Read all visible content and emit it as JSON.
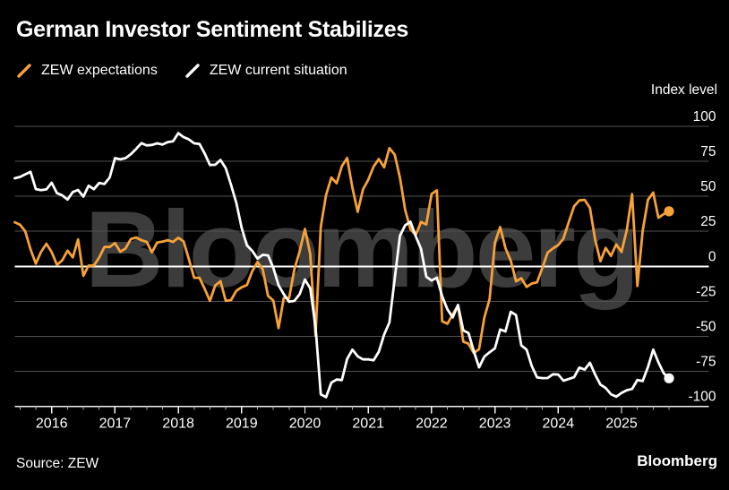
{
  "title": "German Investor Sentiment Stabilizes",
  "watermark": "Bloomberg",
  "footer": {
    "source": "Source: ZEW",
    "brand": "Bloomberg"
  },
  "colors": {
    "background": "#000000",
    "title_text": "#FFFFFF",
    "grid_line": "#4F4F4F",
    "zero_line": "#FFFFFF",
    "axis_line": "#F2F2F2",
    "tick_mark": "#AAAAAA",
    "axis_label": "#FFFFFF",
    "watermark_text": "#3C3C3C",
    "expectations_orange": "#F7A139",
    "current_situation_white": "#FFFFFF"
  },
  "chart_data": {
    "type": "line",
    "title": "German Investor Sentiment Stabilizes",
    "unit_label": "Index level",
    "frequency": "monthly",
    "x_start": "2015-06",
    "x_end": "2025-10",
    "x_tick_years": [
      2016,
      2017,
      2018,
      2019,
      2020,
      2021,
      2022,
      2023,
      2024,
      2025
    ],
    "x_minor_tick_interval_months": 3,
    "ylim": [
      -100,
      100
    ],
    "y_ticks": [
      100,
      75,
      50,
      25,
      0,
      -25,
      -50,
      -75,
      -100
    ],
    "grid": true,
    "legend_position": "top-left",
    "end_point_markers": true,
    "series": [
      {
        "name": "ZEW expectations",
        "color": "#F7A139",
        "values": [
          31.5,
          29.7,
          25.0,
          12.1,
          1.9,
          10.4,
          16.1,
          10.2,
          1.0,
          4.3,
          11.2,
          6.4,
          19.2,
          -6.8,
          0.5,
          0.5,
          6.2,
          13.8,
          13.8,
          16.6,
          10.4,
          12.8,
          19.5,
          20.6,
          18.6,
          17.5,
          10.0,
          17.0,
          17.6,
          18.7,
          17.4,
          20.4,
          17.8,
          5.1,
          -8.2,
          -8.2,
          -16.1,
          -24.7,
          -13.7,
          -10.6,
          -24.7,
          -24.1,
          -17.5,
          -15.0,
          -13.4,
          -3.6,
          3.1,
          -2.1,
          -21.1,
          -24.5,
          -44.1,
          -22.5,
          -22.8,
          -2.1,
          10.7,
          26.7,
          8.7,
          -49.5,
          28.2,
          51.0,
          63.4,
          59.3,
          71.5,
          77.4,
          56.1,
          39.0,
          55.0,
          61.8,
          71.2,
          76.6,
          70.7,
          84.4,
          79.8,
          63.3,
          40.4,
          26.5,
          22.3,
          31.7,
          29.9,
          51.7,
          54.3,
          -39.3,
          -41.0,
          -34.3,
          -28.0,
          -53.8,
          -55.3,
          -61.9,
          -59.2,
          -36.7,
          -23.3,
          16.9,
          28.1,
          13.0,
          4.1,
          -10.7,
          -8.5,
          -14.7,
          -12.3,
          -11.4,
          -1.1,
          9.8,
          12.8,
          15.2,
          19.9,
          31.7,
          42.9,
          47.1,
          47.5,
          41.8,
          19.2,
          3.6,
          13.1,
          7.4,
          15.7,
          10.3,
          26.0,
          51.6,
          -14.0,
          25.2,
          47.5,
          52.7,
          34.7,
          37.3,
          39.3
        ]
      },
      {
        "name": "ZEW current situation",
        "color": "#FFFFFF",
        "values": [
          62.9,
          63.9,
          65.7,
          67.5,
          55.2,
          54.4,
          55.0,
          59.7,
          52.3,
          50.7,
          47.7,
          53.1,
          54.5,
          49.8,
          57.6,
          55.1,
          59.5,
          58.8,
          63.5,
          77.3,
          76.4,
          77.3,
          80.1,
          83.9,
          88.0,
          86.4,
          86.7,
          87.9,
          87.0,
          88.8,
          89.3,
          95.2,
          92.3,
          90.7,
          87.9,
          87.4,
          80.6,
          72.4,
          72.6,
          76.0,
          70.1,
          58.2,
          45.3,
          27.6,
          15.0,
          11.1,
          5.5,
          8.2,
          7.8,
          -1.1,
          -13.5,
          -19.9,
          -25.3,
          -24.7,
          -19.9,
          -9.5,
          -15.7,
          -43.1,
          -91.5,
          -93.5,
          -83.1,
          -80.9,
          -81.3,
          -66.2,
          -59.5,
          -64.3,
          -66.5,
          -66.4,
          -67.2,
          -61.0,
          -48.8,
          -40.1,
          -9.1,
          21.9,
          29.3,
          31.9,
          21.6,
          12.5,
          -7.4,
          -10.2,
          -8.1,
          -21.4,
          -30.8,
          -36.5,
          -27.6,
          -45.8,
          -47.6,
          -60.5,
          -72.2,
          -64.5,
          -61.4,
          -58.6,
          -45.1,
          -46.5,
          -32.5,
          -34.8,
          -56.5,
          -59.5,
          -71.3,
          -79.4,
          -79.9,
          -79.8,
          -77.1,
          -77.3,
          -81.7,
          -80.5,
          -79.2,
          -72.3,
          -73.8,
          -68.9,
          -77.3,
          -84.5,
          -86.9,
          -91.4,
          -93.1,
          -90.4,
          -88.5,
          -87.6,
          -81.2,
          -82.0,
          -72.0,
          -59.5,
          -68.6,
          -76.4,
          -80.0
        ]
      }
    ]
  }
}
